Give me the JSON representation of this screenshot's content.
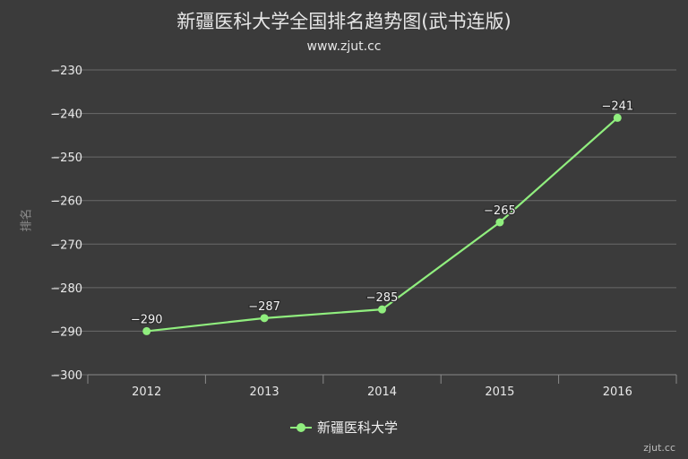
{
  "colors": {
    "background": "#3b3b3b",
    "grid": "#6a6a6a",
    "axis_text": "#e8e8e8",
    "series": "#90ee7e"
  },
  "credit": "zjut.cc",
  "chart_data": {
    "type": "line",
    "title": "新疆医科大学全国排名趋势图(武书连版)",
    "subtitle": "www.zjut.cc",
    "xlabel": "",
    "ylabel": "排名",
    "categories": [
      "2012",
      "2013",
      "2014",
      "2015",
      "2016"
    ],
    "series": [
      {
        "name": "新疆医科大学",
        "values": [
          -290,
          -287,
          -285,
          -265,
          -241
        ]
      }
    ],
    "data_labels": [
      "−290",
      "−287",
      "−285",
      "−265",
      "−241"
    ],
    "yticks": [
      -230,
      -240,
      -250,
      -260,
      -270,
      -280,
      -290,
      -300
    ],
    "ytick_labels": [
      "−230",
      "−240",
      "−250",
      "−260",
      "−270",
      "−280",
      "−290",
      "−300"
    ],
    "ylim": [
      -300,
      -230
    ],
    "grid": true,
    "legend_position": "bottom"
  }
}
